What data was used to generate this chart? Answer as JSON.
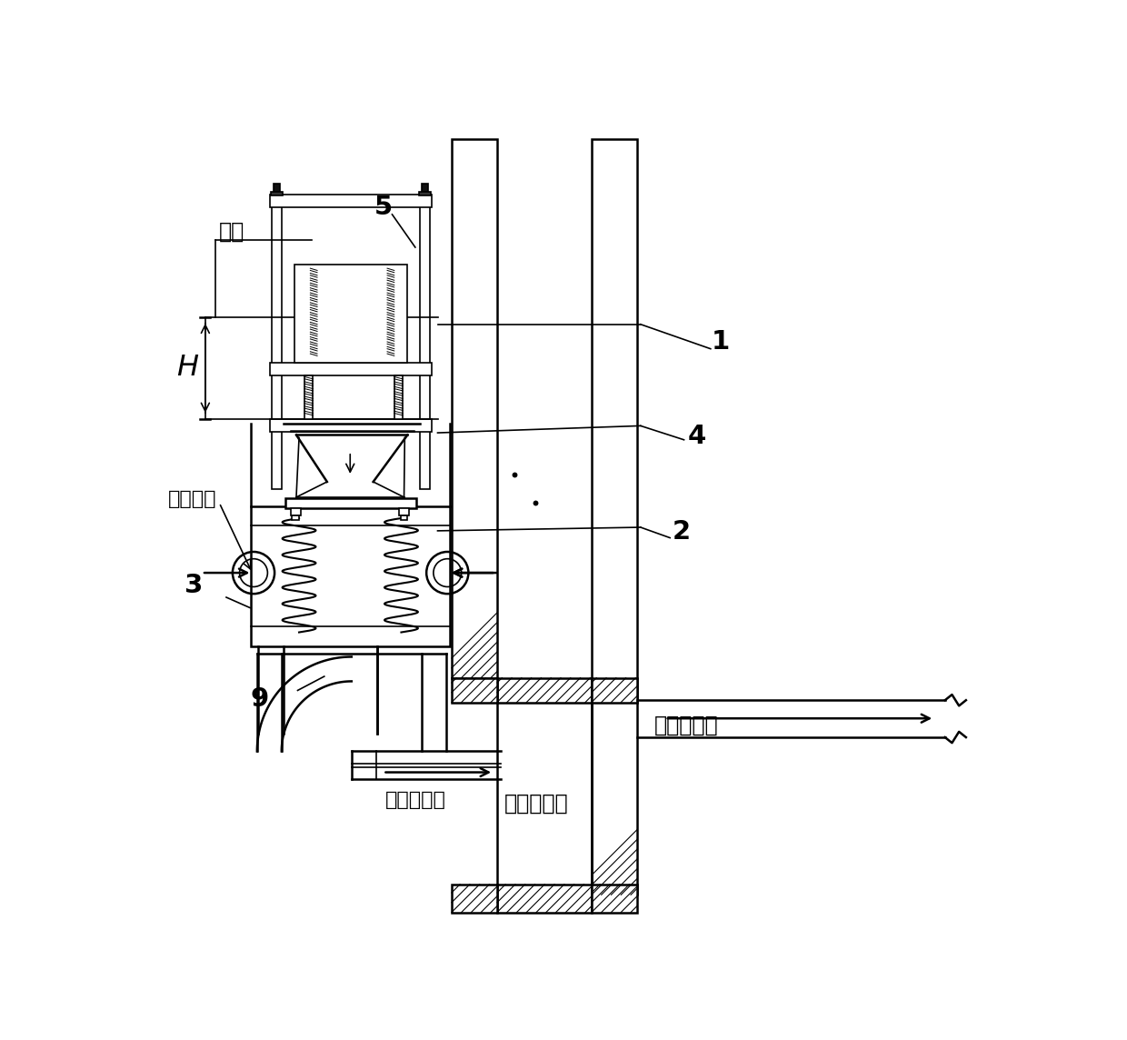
{
  "bg": "#ffffff",
  "fg": "#000000",
  "labels": {
    "liquid_level": "液位",
    "flow_in": "流入方向",
    "constant_flow": "恒流量污水",
    "sewage_well": "污水截流井",
    "sewage_plant": "污水处理厂",
    "H": "H",
    "1": "1",
    "2": "2",
    "3": "3",
    "4": "4",
    "5": "5",
    "9": "9"
  }
}
